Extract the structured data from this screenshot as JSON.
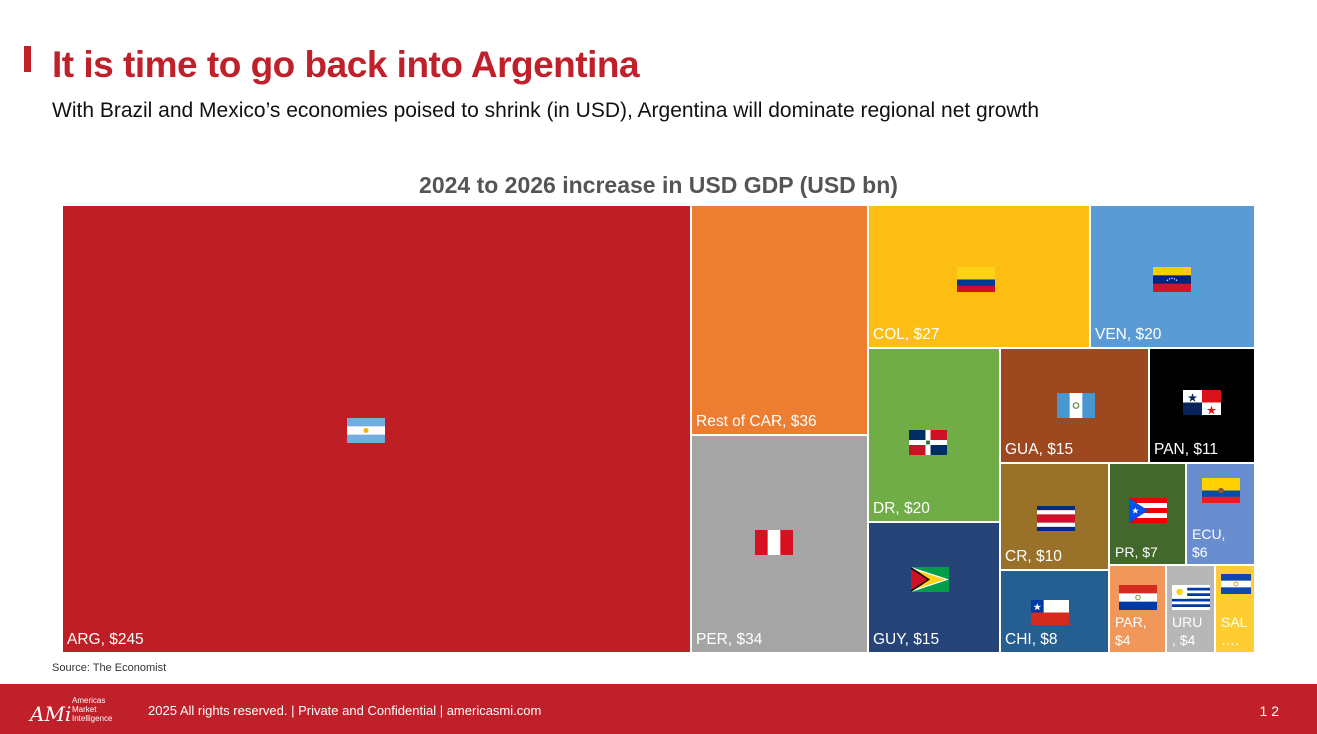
{
  "slide": {
    "title": "It is time to go back into Argentina",
    "subtitle": "With Brazil and Mexico’s economies poised to shrink (in USD), Argentina will dominate regional net growth",
    "source": "Source: The Economist",
    "page_number": "1 2"
  },
  "footer": {
    "logo_mark": "AMi",
    "logo_words": [
      "Americas",
      "Market",
      "Intelligence"
    ],
    "text": "2025 All rights reserved. | Private and Confidential | americasmi.com"
  },
  "chart_data": {
    "type": "treemap",
    "title": "2024 to 2026 increase in USD GDP (USD bn)",
    "units": "USD bn",
    "items": [
      {
        "code": "ARG",
        "label": "ARG,  $245",
        "value": 245,
        "color": "#be1e24",
        "flag": "argentina-flag"
      },
      {
        "code": "Rest of CAR",
        "label": "Rest of CAR,  $36",
        "value": 36,
        "color": "#ed7d31",
        "flag": ""
      },
      {
        "code": "PER",
        "label": "PER,  $34",
        "value": 34,
        "color": "#a5a5a5",
        "flag": "peru-flag"
      },
      {
        "code": "COL",
        "label": "COL,  $27",
        "value": 27,
        "color": "#fcbe13",
        "flag": "colombia-flag"
      },
      {
        "code": "VEN",
        "label": "VEN,  $20",
        "value": 20,
        "color": "#5b9bd5",
        "flag": "venezuela-flag"
      },
      {
        "code": "DR",
        "label": "DR,  $20",
        "value": 20,
        "color": "#70ad47",
        "flag": "dominican-republic-flag"
      },
      {
        "code": "GUY",
        "label": "GUY,  $15",
        "value": 15,
        "color": "#264478",
        "flag": "guyana-flag"
      },
      {
        "code": "GUA",
        "label": "GUA,  $15",
        "value": 15,
        "color": "#9e4820",
        "flag": "guatemala-flag"
      },
      {
        "code": "PAN",
        "label": "PAN,  $11",
        "value": 11,
        "color": "#000000",
        "flag": "panama-flag"
      },
      {
        "code": "CR",
        "label": "CR,  $10",
        "value": 10,
        "color": "#997129",
        "flag": "costa-rica-flag"
      },
      {
        "code": "CHI",
        "label": "CHI,  $8",
        "value": 8,
        "color": "#255e91",
        "flag": "chile-flag"
      },
      {
        "code": "PR",
        "label": "PR,  $7",
        "value": 7,
        "color": "#43682b",
        "flag": "puerto-rico-flag"
      },
      {
        "code": "ECU",
        "label": "ECU,\n$6",
        "value": 6,
        "color": "#698ed0",
        "flag": "ecuador-flag"
      },
      {
        "code": "PAR",
        "label": "PAR,\n$4",
        "value": 4,
        "color": "#f1975a",
        "flag": "paraguay-flag"
      },
      {
        "code": "URU",
        "label": "URU\n, $4",
        "value": 4,
        "color": "#b7b7b7",
        "flag": "uruguay-flag"
      },
      {
        "code": "SAL",
        "label": "SAL\n….",
        "value": 3,
        "color": "#ffcd33",
        "flag": "el-salvador-flag"
      }
    ]
  }
}
